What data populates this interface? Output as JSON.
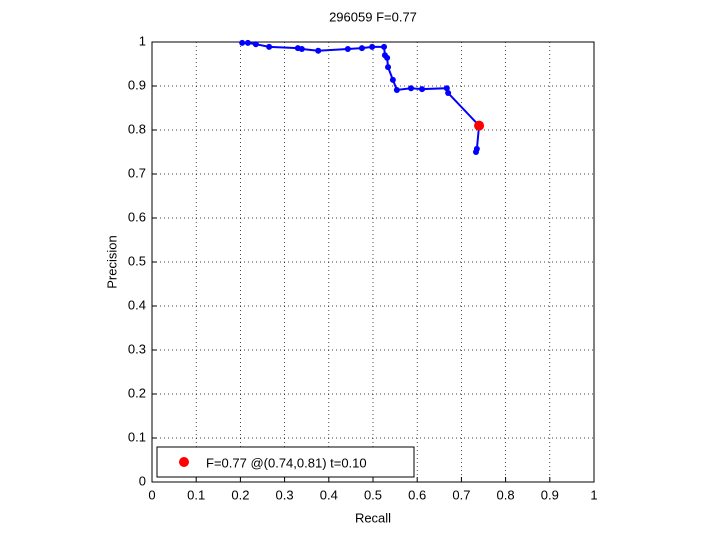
{
  "chart_data": {
    "type": "line",
    "title": "296059 F=0.77",
    "x_label": "Recall",
    "y_label": "Precision",
    "xlim": [
      0,
      1
    ],
    "ylim": [
      0,
      1
    ],
    "xticks": [
      0,
      0.1,
      0.2,
      0.3,
      0.4,
      0.5,
      0.6,
      0.7,
      0.8,
      0.9,
      1
    ],
    "yticks": [
      0,
      0.1,
      0.2,
      0.3,
      0.4,
      0.5,
      0.6,
      0.7,
      0.8,
      0.9,
      1
    ],
    "grid": true,
    "legend": "lower left",
    "series": [
      {
        "color": "#0000ff",
        "x": [
          0.204,
          0.217,
          0.235,
          0.265,
          0.33,
          0.339,
          0.376,
          0.443,
          0.475,
          0.498,
          0.525,
          0.527,
          0.532,
          0.534,
          0.545,
          0.554,
          0.586,
          0.611,
          0.667,
          0.67,
          0.74,
          0.735,
          0.733
        ],
        "values": [
          0.998,
          0.998,
          0.995,
          0.989,
          0.986,
          0.984,
          0.98,
          0.984,
          0.986,
          0.989,
          0.989,
          0.97,
          0.964,
          0.943,
          0.914,
          0.891,
          0.895,
          0.893,
          0.895,
          0.884,
          0.81,
          0.757,
          0.75
        ]
      },
      {
        "name": "F=0.77 @(0.74,0.81) t=0.10",
        "color": "#ff0000",
        "x": [
          0.74
        ],
        "values": [
          0.81
        ]
      }
    ]
  }
}
